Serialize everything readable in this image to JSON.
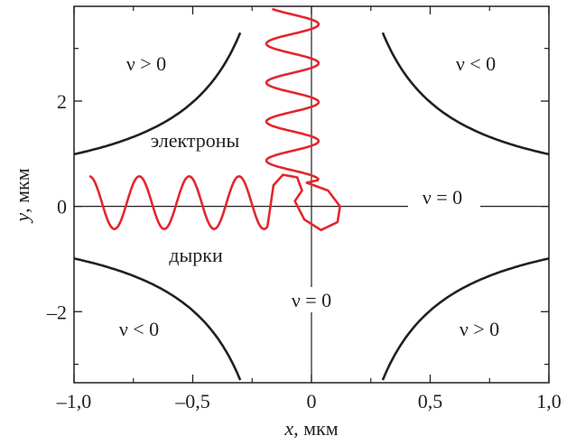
{
  "chart_data": {
    "type": "line",
    "title": "",
    "xlabel_var": "x",
    "xlabel_unit": ", мкм",
    "ylabel_var": "y",
    "ylabel_unit": ", мкм",
    "xlim": [
      -1.0,
      1.0
    ],
    "ylim": [
      -3.35,
      3.8
    ],
    "xticks": [
      {
        "value": -1.0,
        "label": "–1,0"
      },
      {
        "value": -0.5,
        "label": "–0,5"
      },
      {
        "value": 0.0,
        "label": "0"
      },
      {
        "value": 0.5,
        "label": "0,5"
      },
      {
        "value": 1.0,
        "label": "1,0"
      }
    ],
    "yticks": [
      {
        "value": -2,
        "label": "–2"
      },
      {
        "value": 0,
        "label": "0"
      },
      {
        "value": 2,
        "label": "2"
      }
    ],
    "grid": false,
    "hyperbola_constant": 0.99,
    "hyperbola_x_range": [
      0.3,
      1.0
    ],
    "hyperbola_color": "#231f20",
    "trajectory_color": "#e3262c",
    "trajectory_horizontal": {
      "y_center": 0.07,
      "amplitude": 0.5,
      "period": 0.21,
      "x_start": -0.935,
      "x_end": -0.185
    },
    "trajectory_vertical": {
      "x_center": -0.08,
      "amplitude": 0.11,
      "period": 0.74,
      "y_start": 0.5,
      "y_end": 3.75
    },
    "region_labels": {
      "top_left": "ν > 0",
      "top_right": "ν < 0",
      "bottom_left": "ν < 0",
      "bottom_right": "ν > 0",
      "right_axis": "ν = 0",
      "bottom_axis": "ν = 0",
      "electrons": "электроны",
      "holes": "дырки"
    }
  }
}
